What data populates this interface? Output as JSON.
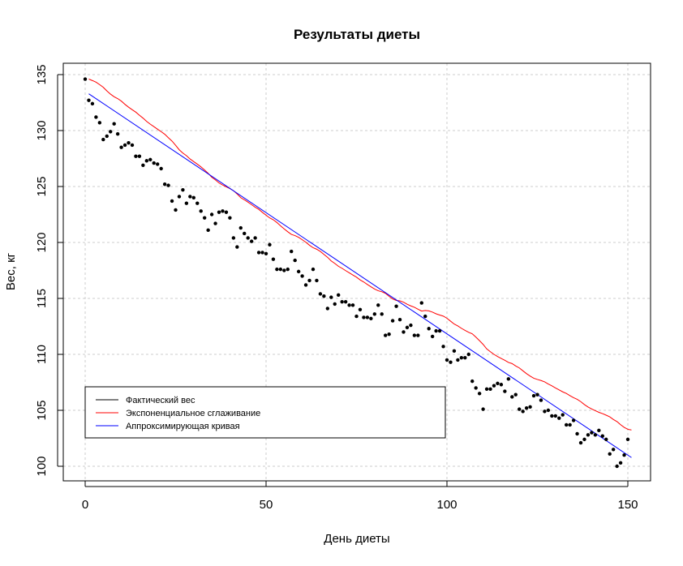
{
  "chart_data": {
    "type": "scatter",
    "title": "Результаты диеты",
    "xlabel": "День диеты",
    "ylabel": "Вес, кг",
    "xlim": [
      -6,
      157
    ],
    "ylim": [
      98.6,
      136
    ],
    "xticks": [
      0,
      50,
      100,
      150
    ],
    "yticks": [
      100,
      105,
      110,
      115,
      120,
      125,
      130,
      135
    ],
    "grid": true,
    "legend_position": "bottom-left",
    "legend": [
      {
        "label": "Фактический вес",
        "color": "#000000"
      },
      {
        "label": "Экспоненциальное сглаживание",
        "color": "#ff0000"
      },
      {
        "label": "Аппроксимирующая кривая",
        "color": "#0000ff"
      }
    ],
    "points_day_start": 0,
    "weights": [
      134.6,
      132.7,
      132.4,
      131.2,
      130.7,
      129.2,
      129.5,
      129.9,
      130.6,
      129.7,
      128.5,
      128.7,
      128.9,
      128.7,
      127.7,
      127.7,
      126.9,
      127.3,
      127.4,
      127.1,
      127.0,
      126.6,
      125.2,
      125.1,
      123.7,
      122.9,
      124.1,
      124.7,
      123.5,
      124.1,
      124.0,
      123.5,
      122.8,
      122.2,
      121.1,
      122.5,
      121.7,
      122.7,
      122.8,
      122.7,
      122.2,
      120.4,
      119.6,
      121.3,
      120.8,
      120.4,
      120.1,
      120.4,
      119.1,
      119.1,
      119.0,
      119.8,
      118.5,
      117.6,
      117.6,
      117.5,
      117.6,
      119.2,
      118.4,
      117.4,
      117.0,
      116.2,
      116.6,
      117.6,
      116.6,
      115.4,
      115.2,
      114.1,
      115.1,
      114.5,
      115.3,
      114.7,
      114.7,
      114.4,
      114.4,
      113.4,
      114.0,
      113.3,
      113.3,
      113.2,
      113.6,
      114.4,
      113.6,
      111.7,
      111.8,
      113.0,
      114.3,
      113.1,
      112.0,
      112.4,
      112.6,
      111.7,
      111.7,
      114.6,
      113.4,
      112.3,
      111.6,
      112.1,
      112.1,
      110.7,
      109.5,
      109.3,
      110.3,
      109.5,
      109.7,
      109.7,
      110.0,
      107.6,
      107.0,
      106.5,
      105.1,
      106.9,
      106.9,
      107.2,
      107.4,
      107.3,
      106.7,
      107.8,
      106.2,
      106.4,
      105.1,
      104.9,
      105.2,
      105.3,
      106.3,
      106.4,
      105.9,
      104.9,
      105.0,
      104.5,
      104.5,
      104.3,
      104.6,
      103.7,
      103.7,
      104.1,
      102.9,
      102.1,
      102.4,
      102.8,
      103.0,
      102.8,
      103.2,
      102.7,
      102.4,
      101.1,
      101.5,
      100.0,
      100.3,
      101.0,
      102.4
    ],
    "exp_smoothing": {
      "alpha": 0.07,
      "offset": 0.0,
      "start_value": 134.6
    },
    "fit_line": {
      "intercept": 133.5,
      "slope": -0.2167,
      "x_range": [
        1,
        151
      ]
    }
  }
}
